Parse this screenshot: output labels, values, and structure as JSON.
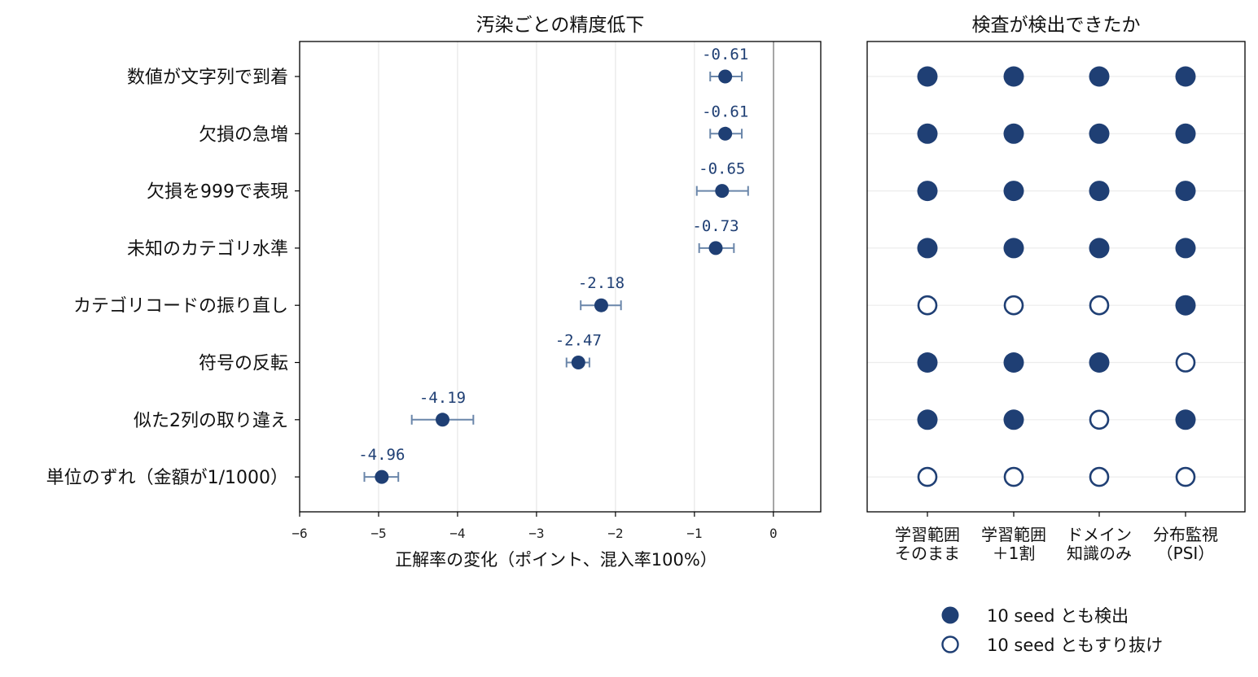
{
  "chart_data": [
    {
      "type": "scatter",
      "subtype": "dot-with-error-bars",
      "title": "汚染ごとの精度低下",
      "xlabel": "正解率の変化（ポイント、混入率100%）",
      "xlim": [
        -6,
        0.6
      ],
      "xticks": [
        -6,
        -5,
        -4,
        -3,
        -2,
        -1,
        0
      ],
      "grid": "vertical",
      "categories": [
        "数値が文字列で到着",
        "欠損の急増",
        "欠損を999で表現",
        "未知のカテゴリ水準",
        "カテゴリコードの振り直し",
        "符号の反転",
        "似た2列の取り違え",
        "単位のずれ（金額が1/1000）"
      ],
      "values": [
        -0.61,
        -0.61,
        -0.65,
        -0.73,
        -2.18,
        -2.47,
        -4.19,
        -4.96
      ],
      "value_labels": [
        "-0.61",
        "-0.61",
        "-0.65",
        "-0.73",
        "-2.18",
        "-2.47",
        "-4.19",
        "-4.96"
      ],
      "error_low": [
        -0.8,
        -0.8,
        -0.97,
        -0.94,
        -2.44,
        -2.62,
        -4.58,
        -5.18
      ],
      "error_high": [
        -0.4,
        -0.4,
        -0.32,
        -0.5,
        -1.93,
        -2.33,
        -3.8,
        -4.75
      ],
      "colors": {
        "point": "#1f3f74",
        "errorbar": "#6a86aa",
        "zero_line": "#7f7f7f"
      }
    },
    {
      "type": "table",
      "subtype": "dot-matrix",
      "title": "検査が検出できたか",
      "columns": [
        [
          "学習範囲",
          "そのまま"
        ],
        [
          "学習範囲",
          "＋1割"
        ],
        [
          "ドメイン",
          "知識のみ"
        ],
        [
          "分布監視",
          "（PSI）"
        ]
      ],
      "rows": [
        [
          true,
          true,
          true,
          true
        ],
        [
          true,
          true,
          true,
          true
        ],
        [
          true,
          true,
          true,
          true
        ],
        [
          true,
          true,
          true,
          true
        ],
        [
          false,
          false,
          false,
          true
        ],
        [
          true,
          true,
          true,
          false
        ],
        [
          true,
          true,
          false,
          true
        ],
        [
          false,
          false,
          false,
          false
        ]
      ],
      "legend": {
        "placement": "bottom",
        "items": [
          {
            "label": "10 seed とも検出",
            "filled": true
          },
          {
            "label": "10 seed ともすり抜け",
            "filled": false
          }
        ]
      },
      "colors": {
        "dot": "#1f3f74"
      }
    }
  ]
}
